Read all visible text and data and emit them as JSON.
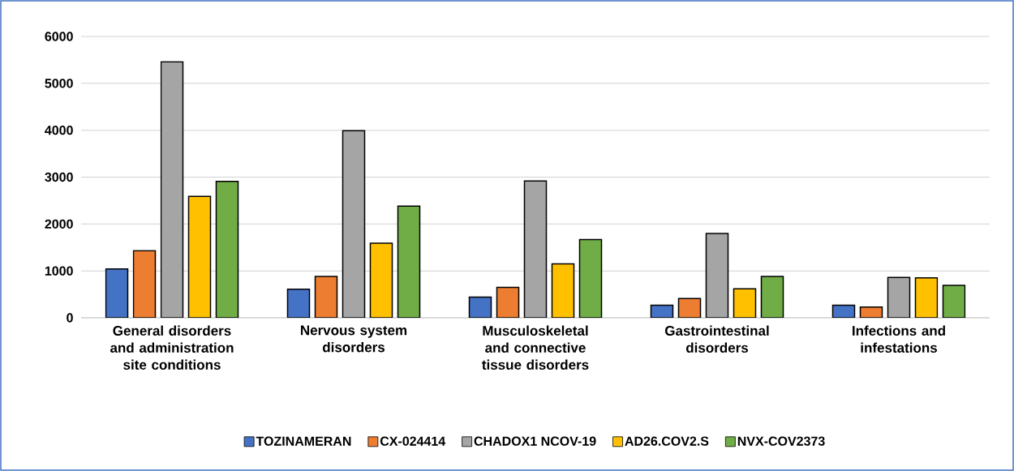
{
  "chart_data": {
    "type": "bar",
    "categories": [
      "General disorders and administration site conditions",
      "Nervous system disorders",
      "Musculoskeletal and connective tissue disorders",
      "Gastrointestinal disorders",
      "Infections and infestations"
    ],
    "series": [
      {
        "name": "TOZINAMERAN",
        "color": "#4472c4",
        "values": [
          1040,
          610,
          440,
          270,
          270
        ]
      },
      {
        "name": "CX-024414",
        "color": "#ed7d31",
        "values": [
          1430,
          880,
          650,
          410,
          230
        ]
      },
      {
        "name": "CHADOX1 NCOV-19",
        "color": "#a5a5a5",
        "values": [
          5460,
          3990,
          2920,
          1800,
          860
        ]
      },
      {
        "name": "AD26.COV2.S",
        "color": "#ffc000",
        "values": [
          2590,
          1590,
          1150,
          620,
          850
        ]
      },
      {
        "name": "NVX-COV2373",
        "color": "#70ad47",
        "values": [
          2910,
          2380,
          1670,
          880,
          690
        ]
      }
    ],
    "ylim": [
      0,
      6000
    ],
    "yticks": [
      0,
      1000,
      2000,
      3000,
      4000,
      5000,
      6000
    ],
    "grid": "y",
    "legend": "bottom"
  }
}
